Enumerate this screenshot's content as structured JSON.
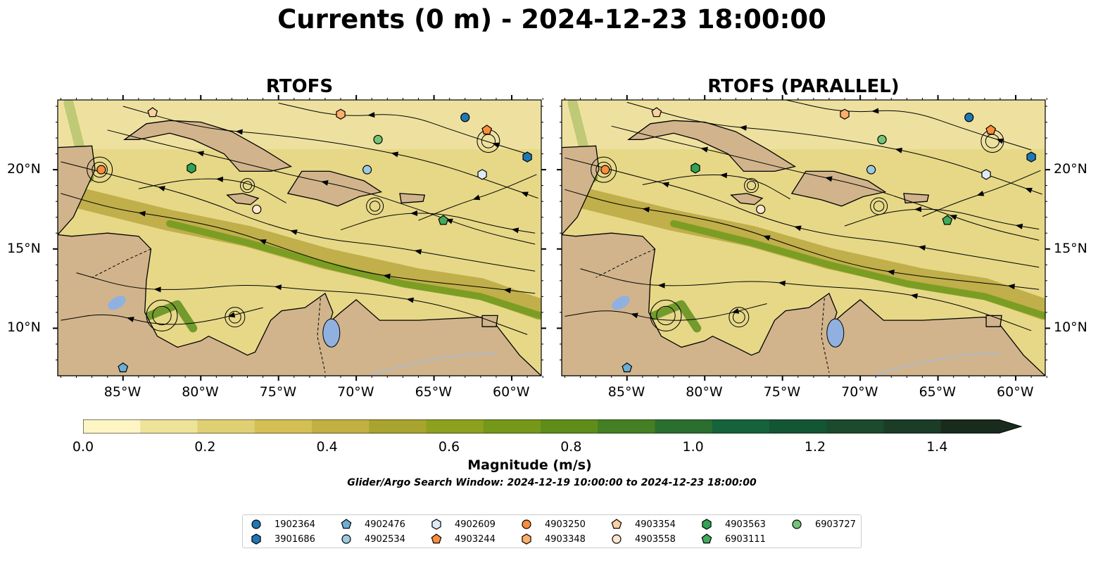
{
  "title": "Currents (0 m) - 2024-12-23 18:00:00",
  "panels": [
    {
      "title": "RTOFS"
    },
    {
      "title": "RTOFS (PARALLEL)"
    }
  ],
  "axes": {
    "lon_ticks": [
      "85°W",
      "80°W",
      "75°W",
      "70°W",
      "65°W",
      "60°W"
    ],
    "lat_ticks": [
      "20°N",
      "15°N",
      "10°N"
    ],
    "lon_range": [
      -89.2,
      -58.1
    ],
    "lat_range": [
      7.0,
      24.4
    ]
  },
  "colorbar": {
    "label": "Magnitude (m/s)",
    "ticks": [
      "0.0",
      "0.2",
      "0.4",
      "0.6",
      "0.8",
      "1.0",
      "1.2",
      "1.4"
    ],
    "range": [
      0.0,
      1.5
    ],
    "extend": "max",
    "colors": [
      "#fdf5c4",
      "#ede49a",
      "#e0d074",
      "#d4bf55",
      "#c3b042",
      "#a8a42f",
      "#8ea11f",
      "#76981a",
      "#5f8d1a",
      "#457f23",
      "#2a6f2d",
      "#15633a",
      "#135633",
      "#1b4a2c",
      "#1b3c26",
      "#192b1d"
    ]
  },
  "search_window": "Glider/Argo Search Window: 2024-12-19 10:00:00 to 2024-12-23 18:00:00",
  "floats": [
    {
      "id": "1902364",
      "marker": "circle",
      "color": "#1f77b4"
    },
    {
      "id": "3901686",
      "marker": "hexagon",
      "color": "#1f77b4"
    },
    {
      "id": "4902476",
      "marker": "pentagon",
      "color": "#6baed6"
    },
    {
      "id": "4902534",
      "marker": "circle",
      "color": "#9ecae1"
    },
    {
      "id": "4902609",
      "marker": "hexagon",
      "color": "#deebf7"
    },
    {
      "id": "4903244",
      "marker": "pentagon",
      "color": "#fd8d3c"
    },
    {
      "id": "4903250",
      "marker": "circle",
      "color": "#fd8d3c"
    },
    {
      "id": "4903348",
      "marker": "hexagon",
      "color": "#fdae6b"
    },
    {
      "id": "4903354",
      "marker": "pentagon",
      "color": "#fdd0a2"
    },
    {
      "id": "4903558",
      "marker": "circle",
      "color": "#fee6ce"
    },
    {
      "id": "4903563",
      "marker": "hexagon",
      "color": "#31a354"
    },
    {
      "id": "6903111",
      "marker": "pentagon",
      "color": "#41ab5d"
    },
    {
      "id": "6903727",
      "marker": "circle",
      "color": "#74c476"
    }
  ],
  "positions": [
    {
      "id": "1902364",
      "lon": -63.0,
      "lat": 23.3
    },
    {
      "id": "3901686",
      "lon": -59.0,
      "lat": 20.8
    },
    {
      "id": "4902476",
      "lon": -85.0,
      "lat": 7.5
    },
    {
      "id": "4902534",
      "lon": -69.3,
      "lat": 20.0
    },
    {
      "id": "4902609",
      "lon": -61.9,
      "lat": 19.7
    },
    {
      "id": "4903244",
      "lon": -61.6,
      "lat": 22.5
    },
    {
      "id": "4903250",
      "lon": -86.4,
      "lat": 20.0
    },
    {
      "id": "4903348",
      "lon": -71.0,
      "lat": 23.5
    },
    {
      "id": "4903354",
      "lon": -83.1,
      "lat": 23.6
    },
    {
      "id": "4903558",
      "lon": -76.4,
      "lat": 17.5
    },
    {
      "id": "4903563",
      "lon": -80.6,
      "lat": 20.1
    },
    {
      "id": "6903111",
      "lon": -64.4,
      "lat": 16.8
    },
    {
      "id": "6903727",
      "lon": -68.6,
      "lat": 21.9
    }
  ],
  "colors": {
    "land": "#d1b48c",
    "lake": "#90b0e0",
    "river": "#a8bbd6"
  }
}
